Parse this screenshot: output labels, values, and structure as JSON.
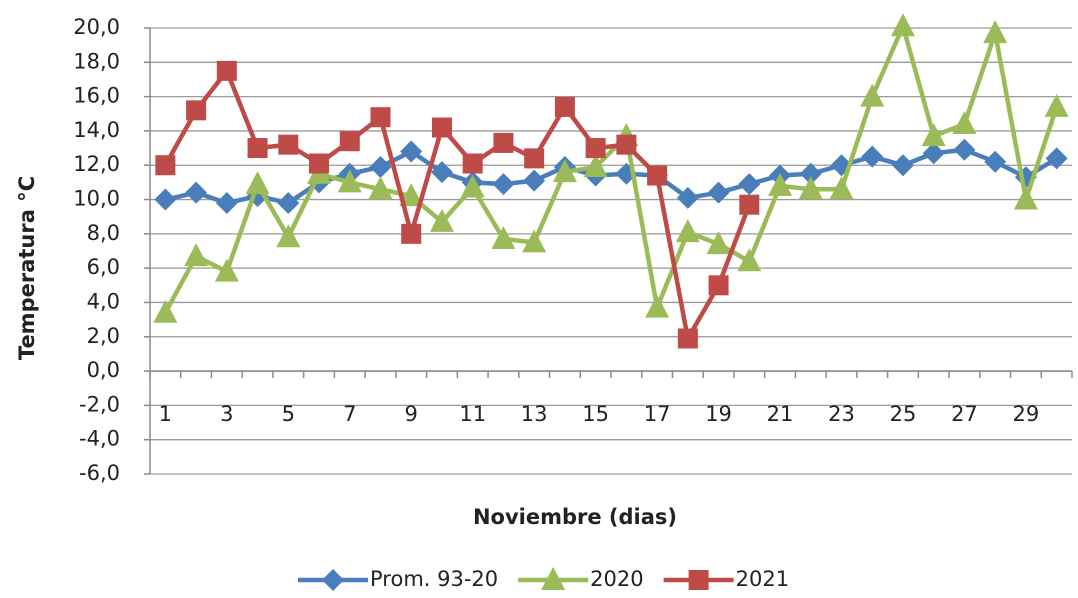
{
  "chart_data": {
    "type": "line",
    "xlabel": "Noviembre (dias)",
    "ylabel": "Temperatura  °C",
    "categories": [
      "1",
      null,
      "3",
      null,
      "5",
      null,
      "7",
      null,
      "9",
      null,
      "11",
      null,
      "13",
      null,
      "15",
      null,
      "17",
      null,
      "19",
      null,
      "21",
      null,
      "23",
      null,
      "25",
      null,
      "27",
      null,
      "29",
      null
    ],
    "series": [
      {
        "name": "Prom. 93-20",
        "color": "#4a7ebb",
        "marker": "diamond",
        "values": [
          10.0,
          10.4,
          9.8,
          10.2,
          9.8,
          11.0,
          11.5,
          11.9,
          12.8,
          11.6,
          11.0,
          10.9,
          11.1,
          11.9,
          11.4,
          11.5,
          11.4,
          10.1,
          10.4,
          10.9,
          11.4,
          11.5,
          12.0,
          12.5,
          12.0,
          12.7,
          12.9,
          12.2,
          11.3,
          12.4
        ]
      },
      {
        "name": "2020",
        "color": "#9bbb59",
        "marker": "triangle",
        "values": [
          3.4,
          6.7,
          5.8,
          10.9,
          7.8,
          11.5,
          11.0,
          10.6,
          10.2,
          8.7,
          10.7,
          7.7,
          7.5,
          11.6,
          11.9,
          13.7,
          3.7,
          8.1,
          7.4,
          6.4,
          10.8,
          10.6,
          10.6,
          16.0,
          20.1,
          13.7,
          14.4,
          19.7,
          10.0,
          15.4
        ]
      },
      {
        "name": "2021",
        "color": "#be4b48",
        "marker": "square",
        "values": [
          12.0,
          15.2,
          17.5,
          13.0,
          13.2,
          12.1,
          13.4,
          14.8,
          8.0,
          14.2,
          12.1,
          13.3,
          12.4,
          15.4,
          13.0,
          13.2,
          11.4,
          1.9,
          5.0,
          9.7,
          null,
          null,
          null,
          null,
          null,
          null,
          null,
          null,
          null,
          null
        ]
      }
    ],
    "ylim": [
      -6,
      20
    ],
    "yticks": [
      {
        "value": -6,
        "label": "-6,0"
      },
      {
        "value": -4,
        "label": "-4,0"
      },
      {
        "value": -2,
        "label": "-2,0"
      },
      {
        "value": 0,
        "label": "0,0"
      },
      {
        "value": 2,
        "label": "2,0"
      },
      {
        "value": 4,
        "label": "4,0"
      },
      {
        "value": 6,
        "label": "6,0"
      },
      {
        "value": 8,
        "label": "8,0"
      },
      {
        "value": 10,
        "label": "10,0"
      },
      {
        "value": 12,
        "label": "12,0"
      },
      {
        "value": 14,
        "label": "14,0"
      },
      {
        "value": 16,
        "label": "16,0"
      },
      {
        "value": 18,
        "label": "18,0"
      },
      {
        "value": 20,
        "label": "20,0"
      }
    ],
    "grid": true,
    "legend": "bottom"
  }
}
